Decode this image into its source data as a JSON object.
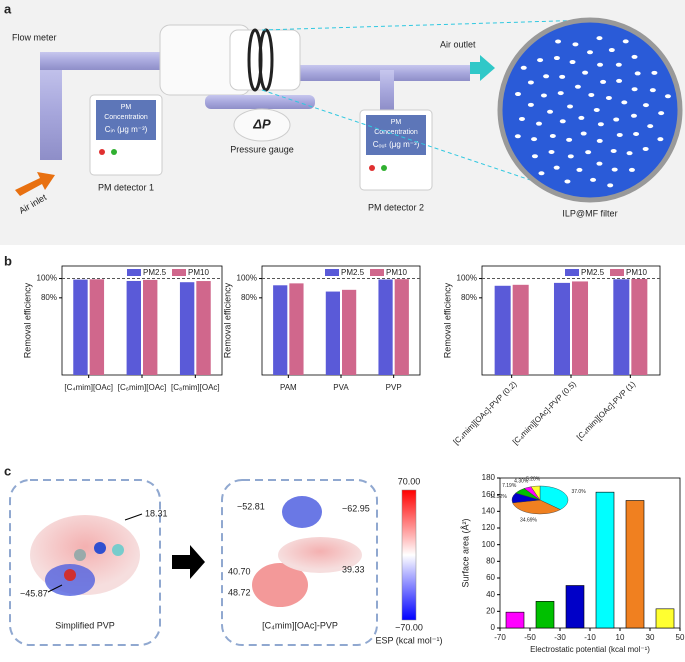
{
  "panel_labels": [
    "a",
    "b",
    "c"
  ],
  "panel_a": {
    "flow_meter": "Flow meter",
    "air_inlet": "Air inlet",
    "air_outlet": "Air outlet",
    "delta_p": "ΔP",
    "pressure_gauge": "Pressure gauge",
    "detector_1": {
      "line1": "PM",
      "line2": "Concentration",
      "line3": "Cᵢₙ (μg m⁻³)",
      "name": "PM detector 1"
    },
    "detector_2": {
      "line1": "PM",
      "line2": "Concentration",
      "line3": "Cₒᵤₜ (μg m⁻³)",
      "name": "PM detector 2"
    },
    "filter": "ILP@MF filter"
  },
  "panel_c": {
    "left": {
      "pos": "18.31",
      "neg": "−45.87",
      "name": "Simplified PVP"
    },
    "middle": {
      "neg1": "−52.81",
      "neg2": "−62.95",
      "pos1": "40.70",
      "pos2": "48.72",
      "pos3": "39.33",
      "name": "[C₄mim][OAc]-PVP"
    },
    "colorbar": {
      "max": "70.00",
      "min": "−70.00",
      "title": "ESP (kcal mol⁻¹)"
    }
  },
  "chart_data": [
    {
      "type": "bar",
      "ylabel": "Removal efficiency",
      "categories": [
        "[C₄mim][OAc]",
        "[C₆mim][OAc]",
        "[C₈mim][OAc]"
      ],
      "series": [
        {
          "name": "PM2.5",
          "color": "#5a5ad8",
          "values": [
            98.9,
            97.5,
            96.2
          ]
        },
        {
          "name": "PM10",
          "color": "#d0678c",
          "values": [
            99.2,
            98.6,
            97.4
          ]
        }
      ],
      "ylim": [
        0,
        113
      ],
      "yticks": [
        {
          "value": 80,
          "label": "80%"
        },
        {
          "value": 100,
          "label": "100%"
        }
      ],
      "dashed_line": 100
    },
    {
      "type": "bar",
      "ylabel": "Removal efficiency",
      "categories": [
        "PAM",
        "PVA",
        "PVP"
      ],
      "series": [
        {
          "name": "PM2.5",
          "color": "#5a5ad8",
          "values": [
            93.0,
            86.5,
            99.0
          ]
        },
        {
          "name": "PM10",
          "color": "#d0678c",
          "values": [
            95.0,
            88.3,
            99.3
          ]
        }
      ],
      "ylim": [
        0,
        113
      ],
      "yticks": [
        {
          "value": 80,
          "label": "80%"
        },
        {
          "value": 100,
          "label": "100%"
        }
      ],
      "dashed_line": 100
    },
    {
      "type": "bar",
      "ylabel": "Removal efficiency",
      "categories": [
        "[C₄mim][OAc]-PVP (0.2)",
        "[C₄mim][OAc]-PVP (0.5)",
        "[C₄mim][OAc]-PVP (1)"
      ],
      "series": [
        {
          "name": "PM2.5",
          "color": "#5a5ad8",
          "values": [
            92.5,
            95.5,
            99.2
          ]
        },
        {
          "name": "PM10",
          "color": "#d0678c",
          "values": [
            93.5,
            97.0,
            99.5
          ]
        }
      ],
      "ylim": [
        0,
        113
      ],
      "yticks": [
        {
          "value": 80,
          "label": "80%"
        },
        {
          "value": 100,
          "label": "100%"
        }
      ],
      "dashed_line": 100
    },
    {
      "type": "histogram",
      "xlabel": "Electrostatic potential (kcal mol⁻¹)",
      "ylabel": "Surface area (Å²)",
      "bins": [
        -70,
        -50,
        -30,
        -10,
        10,
        30,
        50
      ],
      "values": [
        19,
        32,
        51,
        163,
        153,
        23
      ],
      "colors": [
        "#ff00ff",
        "#00c000",
        "#0000c8",
        "#00ffff",
        "#f08020",
        "#ffff30"
      ],
      "xlim": [
        -70,
        50
      ],
      "xticks": [
        -70,
        -50,
        -30,
        -10,
        10,
        30,
        50
      ],
      "ylim": [
        0,
        180
      ],
      "yticks": [
        0,
        20,
        40,
        60,
        80,
        100,
        120,
        140,
        160,
        180
      ]
    },
    {
      "type": "pie",
      "values": [
        37.0,
        34.69,
        11.52,
        7.19,
        4.3,
        5.2
      ],
      "value_labels": [
        "37.0%",
        "34.69%",
        "11.52%",
        "7.19%",
        "4.30%",
        "5.20%"
      ],
      "colors": [
        "#00ffff",
        "#f08020",
        "#0000c8",
        "#00c000",
        "#ff00ff",
        "#ffff30"
      ]
    }
  ]
}
